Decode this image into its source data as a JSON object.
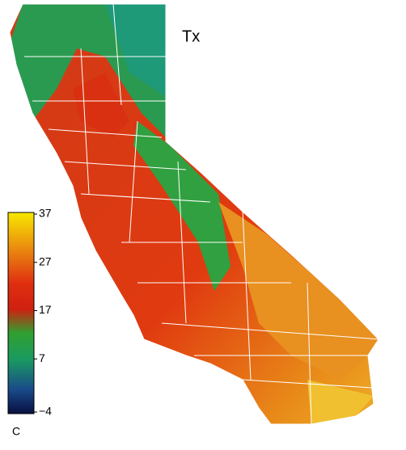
{
  "map": {
    "title": "Tx",
    "legend": {
      "unit": "C",
      "ticks": [
        37,
        27,
        17,
        7,
        {
          "value": -4,
          "label": "−4"
        }
      ]
    }
  }
}
